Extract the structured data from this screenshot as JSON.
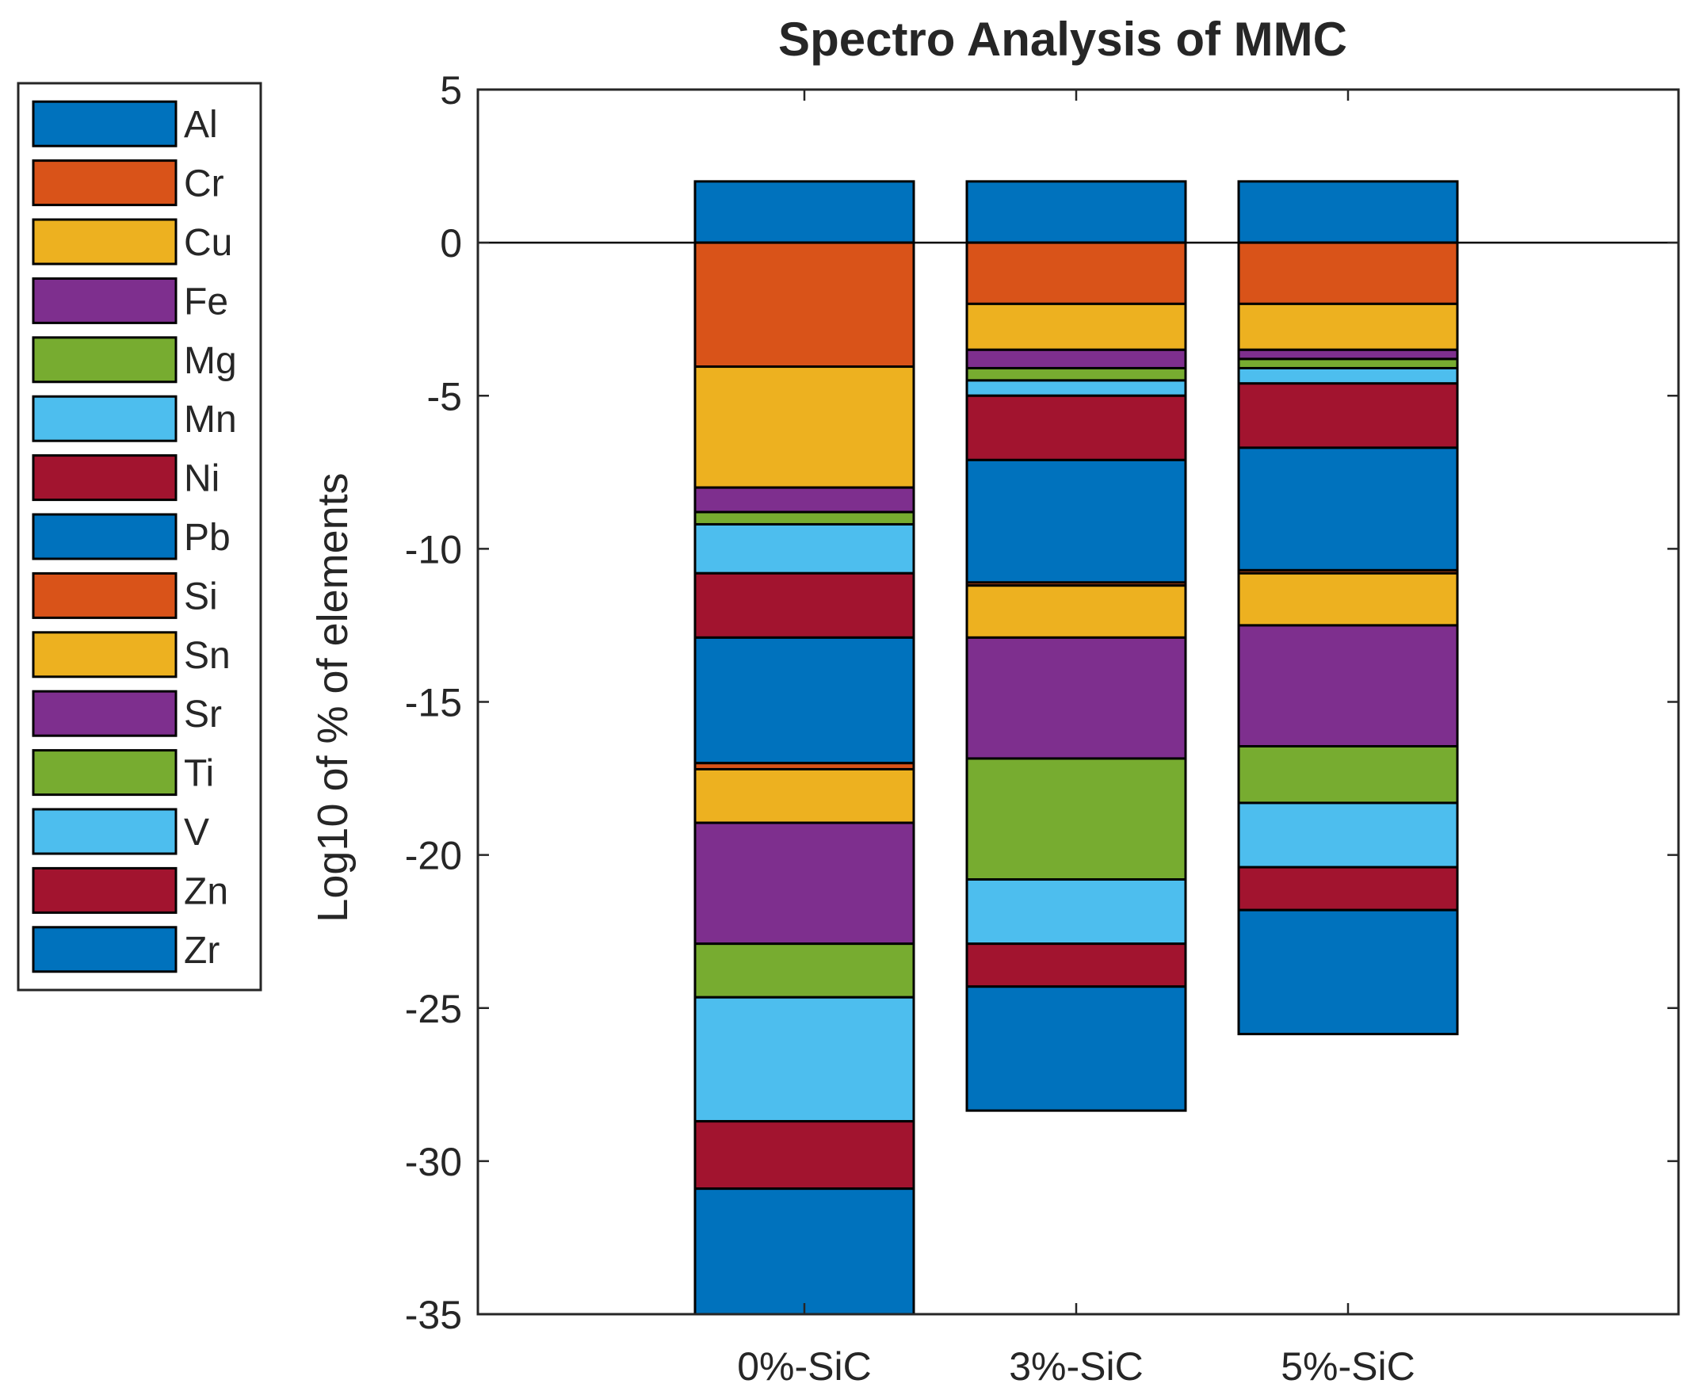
{
  "chart_data": {
    "type": "bar",
    "stacked": true,
    "title": "Spectro Analysis of MMC",
    "xlabel": "",
    "ylabel": "Log10 of % of elements",
    "ylim": [
      -35,
      5
    ],
    "yticks": [
      5,
      0,
      -5,
      -10,
      -15,
      -20,
      -25,
      -30,
      -35
    ],
    "categories": [
      "0%-SiC",
      "3%-SiC",
      "5%-SiC"
    ],
    "legend_position": "outside-left",
    "zero_line": true,
    "series": [
      {
        "name": "Al",
        "color": "#0072BD",
        "values": [
          2.0,
          2.0,
          2.0
        ]
      },
      {
        "name": "Cr",
        "color": "#D95319",
        "values": [
          -4.05,
          -2.0,
          -2.0
        ]
      },
      {
        "name": "Cu",
        "color": "#EDB120",
        "values": [
          -3.95,
          -1.5,
          -1.5
        ]
      },
      {
        "name": "Fe",
        "color": "#7E2F8E",
        "values": [
          -0.8,
          -0.6,
          -0.3
        ]
      },
      {
        "name": "Mg",
        "color": "#77AC30",
        "values": [
          -0.4,
          -0.4,
          -0.3
        ]
      },
      {
        "name": "Mn",
        "color": "#4DBEEE",
        "values": [
          -1.6,
          -0.5,
          -0.5
        ]
      },
      {
        "name": "Ni",
        "color": "#A2142F",
        "values": [
          -2.1,
          -2.1,
          -2.1
        ]
      },
      {
        "name": "Pb",
        "color": "#0072BD",
        "values": [
          -4.1,
          -4.0,
          -4.0
        ]
      },
      {
        "name": "Si",
        "color": "#D95319",
        "values": [
          -0.2,
          -0.1,
          -0.1
        ]
      },
      {
        "name": "Sn",
        "color": "#EDB120",
        "values": [
          -1.75,
          -1.7,
          -1.7
        ]
      },
      {
        "name": "Sr",
        "color": "#7E2F8E",
        "values": [
          -3.95,
          -3.95,
          -3.95
        ]
      },
      {
        "name": "Ti",
        "color": "#77AC30",
        "values": [
          -1.75,
          -3.95,
          -1.85
        ]
      },
      {
        "name": "V",
        "color": "#4DBEEE",
        "values": [
          -4.05,
          -2.1,
          -2.1
        ]
      },
      {
        "name": "Zn",
        "color": "#A2142F",
        "values": [
          -2.2,
          -1.4,
          -1.4
        ]
      },
      {
        "name": "Zr",
        "color": "#0072BD",
        "values": [
          -4.1,
          -4.05,
          -4.05
        ]
      }
    ]
  }
}
